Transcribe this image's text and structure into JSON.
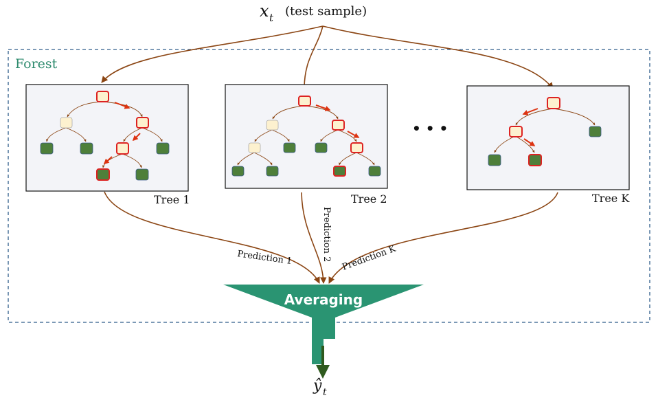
{
  "input": {
    "symbol_base": "x",
    "symbol_sub": "t",
    "label": "(test sample)"
  },
  "forest_label": "Forest",
  "ellipsis": "• • •",
  "trees": [
    {
      "label": "Tree 1",
      "prediction": "Prediction 1"
    },
    {
      "label": "Tree 2",
      "prediction": "Prediction 2"
    },
    {
      "label": "Tree K",
      "prediction": "Prediction K"
    }
  ],
  "aggregator_label": "Averaging",
  "output": {
    "symbol_base": "ŷ",
    "symbol_sub": "t"
  },
  "colors": {
    "arrow": "#8B4513",
    "forest_border": "#2E5C8A",
    "forest_label": "#2E8B6E",
    "funnel": "#2A9472",
    "leaf": "#4E7F3A",
    "node": "#FDF1CF",
    "highlight": "#DD2222",
    "output_arrow": "#2F5A1E",
    "tree_panel": "#F3F4F8"
  }
}
